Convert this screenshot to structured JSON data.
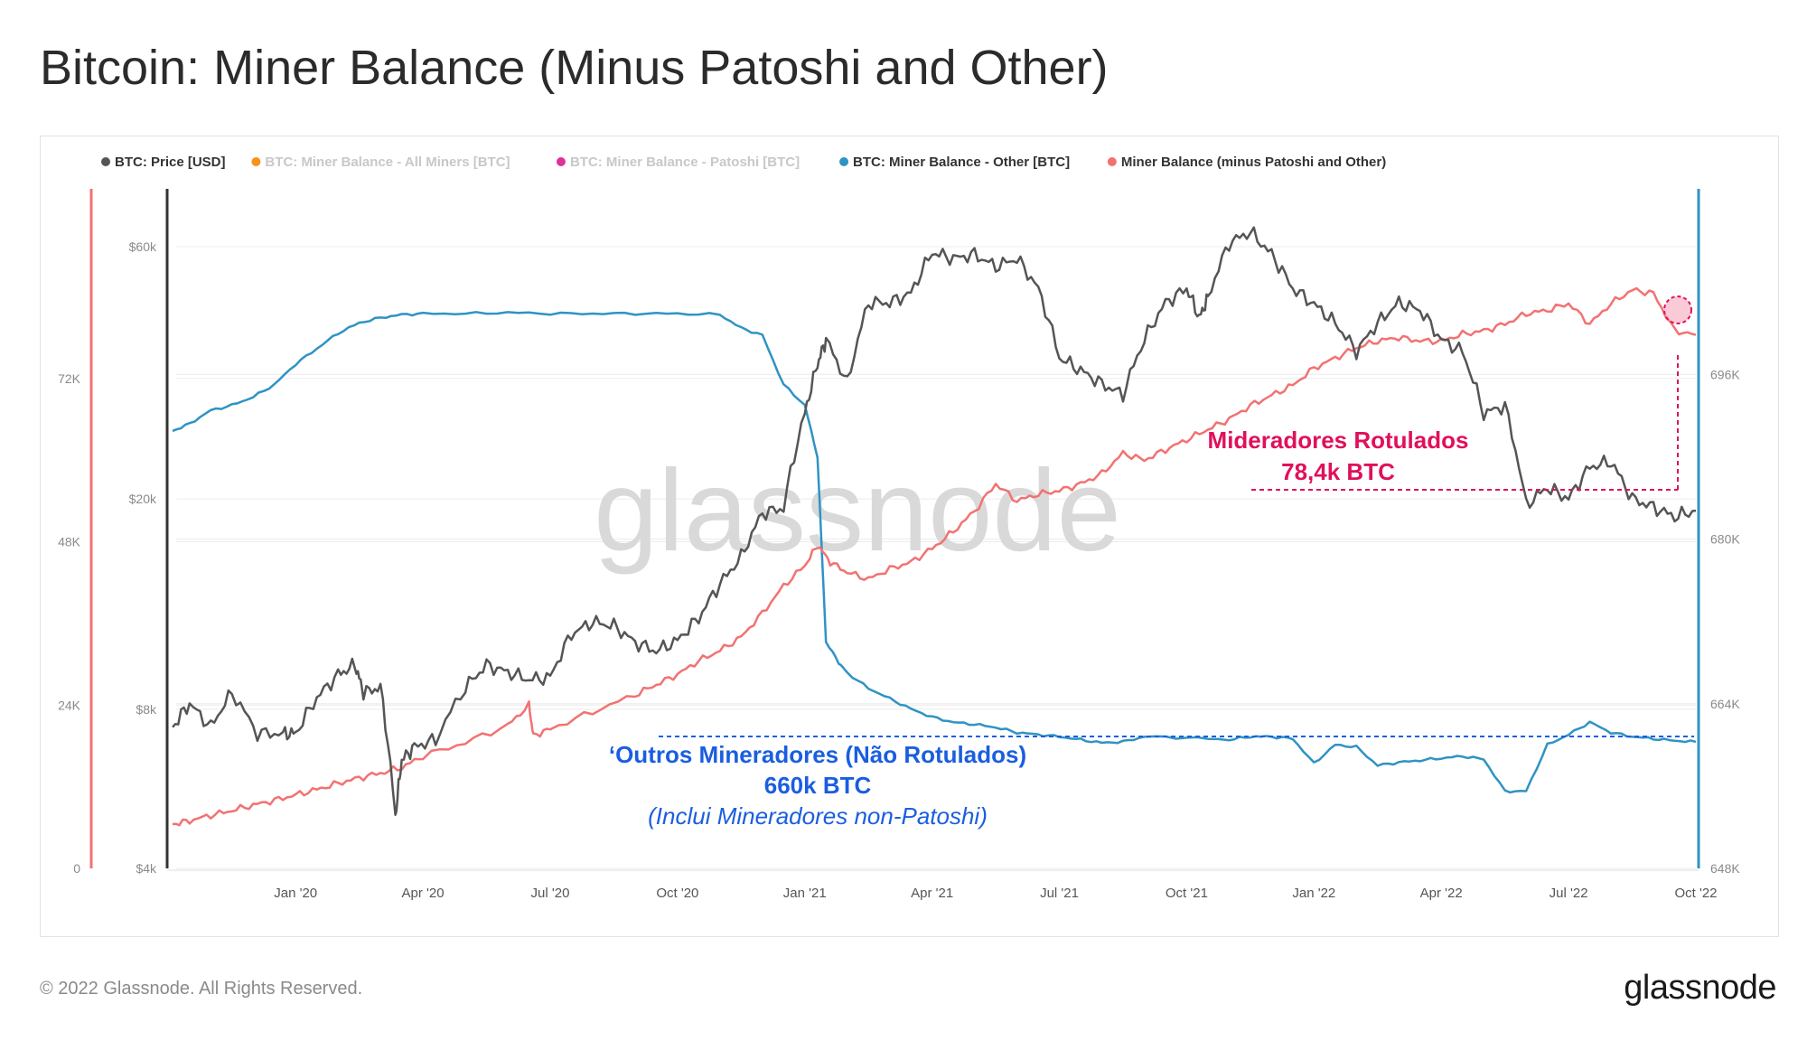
{
  "title": "Bitcoin: Miner Balance (Minus Patoshi and Other)",
  "footer": "© 2022 Glassnode. All Rights Reserved.",
  "brand": "glassnode",
  "watermark": "glassnode",
  "colors": {
    "price": "#555555",
    "all_miners": "#f7931a",
    "patoshi": "#e0309a",
    "other": "#2f93c4",
    "minus": "#f27272",
    "annot_red": "#e0105a",
    "annot_blue": "#1a5ee0",
    "grid": "#ececec"
  },
  "chart_data": {
    "type": "line",
    "legend": [
      {
        "label": "BTC: Price [USD]",
        "color": "#555555",
        "active": true
      },
      {
        "label": "BTC: Miner Balance - All Miners [BTC]",
        "color": "#f7931a",
        "active": false
      },
      {
        "label": "BTC: Miner Balance - Patoshi [BTC]",
        "color": "#e0309a",
        "active": false
      },
      {
        "label": "BTC: Miner Balance - Other [BTC]",
        "color": "#2f93c4",
        "active": true
      },
      {
        "label": "Miner Balance (minus Patoshi and Other)",
        "color": "#f27272",
        "active": true
      }
    ],
    "x_ticks": [
      "Jan '20",
      "Apr '20",
      "Jul '20",
      "Oct '20",
      "Jan '21",
      "Apr '21",
      "Jul '21",
      "Oct '21",
      "Jan '22",
      "Apr '22",
      "Jul '22",
      "Oct '22"
    ],
    "x_range_months": [
      -2.9,
      33.0
    ],
    "price_axis": {
      "scale": "log",
      "range": [
        4000,
        80000
      ],
      "ticks": [
        {
          "v": 4000,
          "label": "$4k"
        },
        {
          "v": 8000,
          "label": "$8k"
        },
        {
          "v": 20000,
          "label": "$20k"
        },
        {
          "v": 60000,
          "label": "$60k"
        }
      ]
    },
    "left_axis": {
      "range": [
        0,
        96000
      ],
      "ticks": [
        {
          "v": 0,
          "label": "0"
        },
        {
          "v": 24000,
          "label": "24K"
        },
        {
          "v": 48000,
          "label": "48K"
        },
        {
          "v": 72000,
          "label": "72K"
        }
      ]
    },
    "right_axis": {
      "range": [
        648000,
        712000
      ],
      "ticks": [
        {
          "v": 648000,
          "label": "648K"
        },
        {
          "v": 664000,
          "label": "664K"
        },
        {
          "v": 680000,
          "label": "680K"
        },
        {
          "v": 696000,
          "label": "696K"
        }
      ]
    },
    "series": [
      {
        "name": "BTC: Price [USD]",
        "axis": "price",
        "color": "#555555",
        "months": [
          -2.9,
          -2.5,
          -2.0,
          -1.5,
          -0.9,
          -0.3,
          0.0,
          0.5,
          1.0,
          1.4,
          1.6,
          2.0,
          2.35,
          2.5,
          2.8,
          3.3,
          4.0,
          4.5,
          5.0,
          5.5,
          6.0,
          6.5,
          7.0,
          7.5,
          8.0,
          8.5,
          9.0,
          9.5,
          10.0,
          10.5,
          11.0,
          11.5,
          12.0,
          12.3,
          12.5,
          13.0,
          13.5,
          14.0,
          14.5,
          15.0,
          15.5,
          16.0,
          16.5,
          17.0,
          17.5,
          18.0,
          18.5,
          19.0,
          19.5,
          20.0,
          20.5,
          21.0,
          21.3,
          21.5,
          22.0,
          22.5,
          23.0,
          23.5,
          24.0,
          24.5,
          25.0,
          25.5,
          26.0,
          26.5,
          27.0,
          27.5,
          28.0,
          28.5,
          29.0,
          29.5,
          30.0,
          30.5,
          31.0,
          31.5,
          32.0,
          32.5,
          33.0
        ],
        "values": [
          7400,
          8200,
          7400,
          8600,
          7200,
          7200,
          7200,
          8400,
          9300,
          9700,
          8600,
          8800,
          5000,
          6400,
          6800,
          7000,
          8800,
          9700,
          9400,
          9100,
          9200,
          11100,
          11700,
          11500,
          10700,
          10300,
          10800,
          11900,
          13800,
          15500,
          18800,
          19200,
          29000,
          36000,
          40000,
          33000,
          47000,
          47000,
          49000,
          58500,
          57000,
          58000,
          55000,
          57000,
          50000,
          37000,
          35000,
          33000,
          31500,
          40000,
          47000,
          50000,
          44000,
          48000,
          61000,
          64000,
          58000,
          50000,
          46700,
          43000,
          38000,
          43000,
          47000,
          45500,
          40000,
          38000,
          29000,
          30000,
          19500,
          21000,
          20000,
          23000,
          23500,
          20000,
          19300,
          18500,
          19000
        ]
      },
      {
        "name": "BTC: Miner Balance - Other [BTC]",
        "axis": "right",
        "color": "#2f93c4",
        "months": [
          -2.9,
          -2.5,
          -2.0,
          -1.5,
          -1.0,
          -0.5,
          0.0,
          0.5,
          1.0,
          1.5,
          2.0,
          2.5,
          3.0,
          4.0,
          5.0,
          6.0,
          7.0,
          8.0,
          9.0,
          10.0,
          10.5,
          11.0,
          11.5,
          12.0,
          12.3,
          12.5,
          12.8,
          13.0,
          13.5,
          14.0,
          14.5,
          15.0,
          15.5,
          16.0,
          16.5,
          17.0,
          17.5,
          18.0,
          18.5,
          19.0,
          19.5,
          20.0,
          21.0,
          22.0,
          22.5,
          23.0,
          23.5,
          24.0,
          24.5,
          25.0,
          25.5,
          26.0,
          26.5,
          27.0,
          27.5,
          28.0,
          28.5,
          29.0,
          29.5,
          30.0,
          30.5,
          31.0,
          31.5,
          32.0,
          32.5,
          33.0
        ],
        "values": [
          690500,
          691200,
          692500,
          693000,
          693800,
          695000,
          697000,
          698500,
          700000,
          701000,
          701500,
          701800,
          701900,
          701900,
          702000,
          701900,
          701900,
          701900,
          701900,
          701800,
          700500,
          699800,
          695000,
          693000,
          688000,
          670000,
          668000,
          667000,
          665500,
          664500,
          663500,
          662700,
          662200,
          662000,
          661700,
          661200,
          661000,
          660800,
          660500,
          660200,
          660300,
          660800,
          660700,
          660500,
          660800,
          660800,
          660600,
          658200,
          660000,
          659800,
          658000,
          658300,
          658500,
          658700,
          658900,
          658600,
          655500,
          655500,
          660000,
          661000,
          662200,
          661200,
          660800,
          660600,
          660400,
          660300
        ]
      },
      {
        "name": "Miner Balance (minus Patoshi and Other)",
        "axis": "left",
        "color": "#f27272",
        "months": [
          -2.9,
          -2.5,
          -2.0,
          -1.5,
          -1.0,
          -0.5,
          0.0,
          0.5,
          1.0,
          1.5,
          2.0,
          2.5,
          3.0,
          4.0,
          5.0,
          5.5,
          5.6,
          6.0,
          7.0,
          8.0,
          8.5,
          9.0,
          9.5,
          10.0,
          10.5,
          11.0,
          11.5,
          12.0,
          12.3,
          12.6,
          13.0,
          13.5,
          14.0,
          14.5,
          15.0,
          15.5,
          16.0,
          16.5,
          17.0,
          17.5,
          18.0,
          18.5,
          19.0,
          19.5,
          20.0,
          20.5,
          21.0,
          21.5,
          22.0,
          22.5,
          23.0,
          23.5,
          24.0,
          24.5,
          25.0,
          25.5,
          26.0,
          26.5,
          27.0,
          27.5,
          28.0,
          28.5,
          29.0,
          29.5,
          30.0,
          30.5,
          31.0,
          31.5,
          32.0,
          32.5,
          33.0
        ],
        "values": [
          6500,
          7000,
          7800,
          8500,
          9300,
          10000,
          10800,
          11600,
          12500,
          13300,
          14000,
          14800,
          16500,
          18500,
          21000,
          24000,
          19500,
          20500,
          23000,
          25500,
          27000,
          28500,
          30500,
          32000,
          34000,
          37500,
          41500,
          44500,
          47500,
          45000,
          43500,
          42500,
          44000,
          45000,
          47000,
          49500,
          52500,
          56500,
          54000,
          55000,
          55500,
          56500,
          58000,
          61000,
          60000,
          61500,
          63000,
          64500,
          66000,
          68000,
          69500,
          71000,
          73500,
          75000,
          76500,
          77500,
          78000,
          77500,
          77500,
          78500,
          79000,
          80000,
          81500,
          82000,
          83000,
          80000,
          83000,
          85000,
          84500,
          79000,
          78400
        ]
      }
    ],
    "annotations": {
      "labeled_title": "Mideradores Rotulados",
      "labeled_value": "78,4k BTC",
      "other_title": "‘Outros Mineradores (Não Rotulados)",
      "other_value": "660k BTC",
      "other_note": "(Inclui Mineradores non-Patoshi)"
    }
  }
}
